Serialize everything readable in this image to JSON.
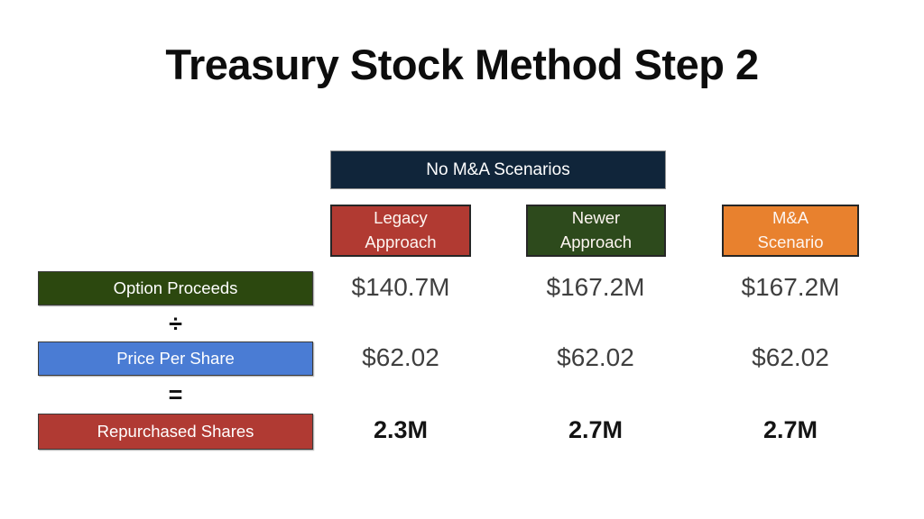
{
  "title": "Treasury Stock Method Step 2",
  "table": {
    "group_header": {
      "label": "No M&A Scenarios",
      "bg": "#10253a"
    },
    "columns": [
      {
        "label": "Legacy\nApproach",
        "bg": "#b13a32"
      },
      {
        "label": "Newer\nApproach",
        "bg": "#2d4a1c"
      },
      {
        "label": "M&A\nScenario",
        "bg": "#e8812e"
      }
    ],
    "rows": [
      {
        "label": "Option Proceeds",
        "bg": "#2c480f",
        "values": [
          "$140.7M",
          "$167.2M",
          "$167.2M"
        ]
      },
      {
        "label": "Price Per Share",
        "bg": "#4a7cd4",
        "values": [
          "$62.02",
          "$62.02",
          "$62.02"
        ]
      },
      {
        "label": "Repurchased Shares",
        "bg": "#b03a33",
        "values": [
          "2.3M",
          "2.7M",
          "2.7M"
        ]
      }
    ],
    "operators": {
      "divide": "÷",
      "equals": "="
    }
  },
  "colors": {
    "slide_background": "#ffffff",
    "group_header_navy": "#10253a",
    "legacy_red": "#b13a32",
    "newer_green": "#2d4a1c",
    "mna_orange": "#e8812e",
    "option_proceeds_green": "#2c480f",
    "price_per_share_blue": "#4a7cd4",
    "repurchased_shares_red": "#b03a33",
    "value_text": "#3f3f3f",
    "emphasis_text": "#141414"
  }
}
